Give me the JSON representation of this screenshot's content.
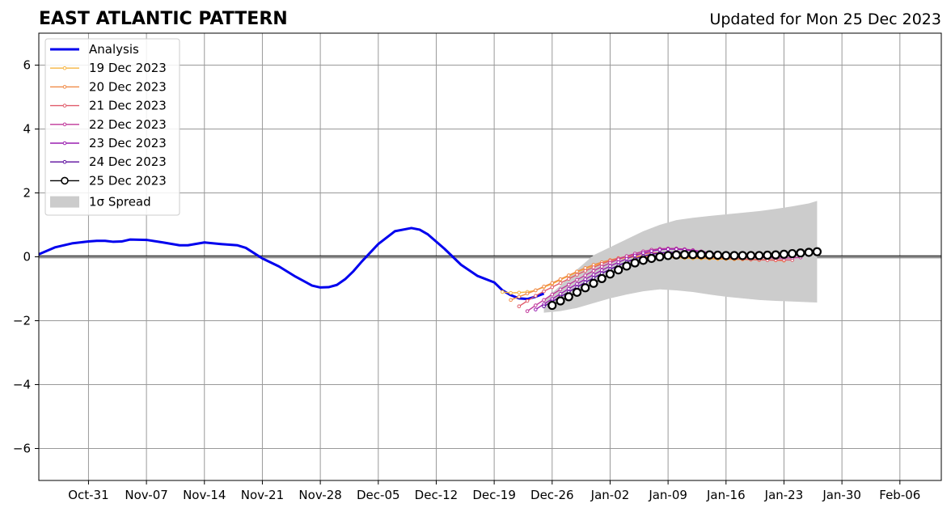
{
  "chart_data": {
    "type": "line",
    "title": "EAST ATLANTIC PATTERN",
    "subtitle": "Updated for Mon 25 Dec 2023",
    "xlabel": "",
    "ylabel": "",
    "xlim": [
      "2023-10-25",
      "2024-02-11"
    ],
    "ylim": [
      -7,
      7
    ],
    "yticks": [
      -6,
      -4,
      -2,
      0,
      2,
      4,
      6
    ],
    "ytick_labels": [
      "−6",
      "−4",
      "−2",
      "0",
      "2",
      "4",
      "6"
    ],
    "xticks": [
      "2023-10-31",
      "2023-11-07",
      "2023-11-14",
      "2023-11-21",
      "2023-11-28",
      "2023-12-05",
      "2023-12-12",
      "2023-12-19",
      "2023-12-26",
      "2024-01-02",
      "2024-01-09",
      "2024-01-16",
      "2024-01-23",
      "2024-01-30",
      "2024-02-06"
    ],
    "xtick_labels": [
      "Oct-31",
      "Nov-07",
      "Nov-14",
      "Nov-21",
      "Nov-28",
      "Dec-05",
      "Dec-12",
      "Dec-19",
      "Dec-26",
      "Jan-02",
      "Jan-09",
      "Jan-16",
      "Jan-23",
      "Jan-30",
      "Feb-06"
    ],
    "grid": true,
    "legend_position": "top-left",
    "spread": {
      "label": "1σ Spread",
      "color": "#cccccc",
      "x": [
        "2023-12-25",
        "2023-12-27",
        "2023-12-29",
        "2023-12-31",
        "2024-01-02",
        "2024-01-04",
        "2024-01-06",
        "2024-01-08",
        "2024-01-10",
        "2024-01-12",
        "2024-01-14",
        "2024-01-16",
        "2024-01-18",
        "2024-01-20",
        "2024-01-22",
        "2024-01-24",
        "2024-01-26",
        "2024-01-27"
      ],
      "upper": [
        -1.35,
        -0.9,
        -0.4,
        0.05,
        0.3,
        0.55,
        0.8,
        1.0,
        1.15,
        1.22,
        1.28,
        1.33,
        1.38,
        1.43,
        1.5,
        1.58,
        1.67,
        1.75
      ],
      "lower": [
        -1.75,
        -1.7,
        -1.6,
        -1.45,
        -1.3,
        -1.18,
        -1.08,
        -1.02,
        -1.05,
        -1.1,
        -1.18,
        -1.25,
        -1.3,
        -1.35,
        -1.38,
        -1.4,
        -1.42,
        -1.43
      ]
    },
    "series": [
      {
        "name": "Analysis",
        "color": "#0000ee",
        "marker": "none",
        "x": [
          "2023-10-25",
          "2023-10-27",
          "2023-10-29",
          "2023-10-31",
          "2023-11-01",
          "2023-11-02",
          "2023-11-03",
          "2023-11-04",
          "2023-11-05",
          "2023-11-07",
          "2023-11-09",
          "2023-11-11",
          "2023-11-12",
          "2023-11-14",
          "2023-11-16",
          "2023-11-18",
          "2023-11-19",
          "2023-11-21",
          "2023-11-23",
          "2023-11-25",
          "2023-11-27",
          "2023-11-28",
          "2023-11-29",
          "2023-11-30",
          "2023-12-01",
          "2023-12-02",
          "2023-12-03",
          "2023-12-05",
          "2023-12-07",
          "2023-12-09",
          "2023-12-10",
          "2023-12-11",
          "2023-12-13",
          "2023-12-15",
          "2023-12-17",
          "2023-12-19",
          "2023-12-20",
          "2023-12-21",
          "2023-12-22",
          "2023-12-23",
          "2023-12-24",
          "2023-12-25"
        ],
        "values": [
          0.08,
          0.3,
          0.42,
          0.48,
          0.5,
          0.5,
          0.47,
          0.48,
          0.54,
          0.53,
          0.45,
          0.36,
          0.36,
          0.45,
          0.4,
          0.36,
          0.28,
          -0.05,
          -0.3,
          -0.62,
          -0.9,
          -0.96,
          -0.95,
          -0.88,
          -0.7,
          -0.45,
          -0.15,
          0.4,
          0.8,
          0.9,
          0.85,
          0.7,
          0.25,
          -0.25,
          -0.6,
          -0.8,
          -1.05,
          -1.2,
          -1.3,
          -1.32,
          -1.25,
          -1.15
        ]
      },
      {
        "name": "19 Dec 2023",
        "color": "#f6b441",
        "marker": "small",
        "x": [
          "2023-12-20",
          "2023-12-21",
          "2023-12-22",
          "2023-12-23",
          "2023-12-24",
          "2023-12-25",
          "2023-12-26",
          "2023-12-27",
          "2023-12-28",
          "2023-12-29",
          "2023-12-30",
          "2023-12-31",
          "2024-01-01",
          "2024-01-02",
          "2024-01-03",
          "2024-01-04",
          "2024-01-05",
          "2024-01-06",
          "2024-01-07",
          "2024-01-08",
          "2024-01-09",
          "2024-01-10",
          "2024-01-11",
          "2024-01-12",
          "2024-01-13",
          "2024-01-14",
          "2024-01-15",
          "2024-01-16",
          "2024-01-17",
          "2024-01-18",
          "2024-01-19",
          "2024-01-20",
          "2024-01-21",
          "2024-01-22"
        ],
        "values": [
          -1.1,
          -1.13,
          -1.12,
          -1.1,
          -1.05,
          -0.95,
          -0.85,
          -0.72,
          -0.6,
          -0.48,
          -0.38,
          -0.28,
          -0.2,
          -0.13,
          -0.07,
          -0.03,
          -0.01,
          0.0,
          0.0,
          -0.01,
          -0.02,
          -0.03,
          -0.04,
          -0.05,
          -0.05,
          -0.06,
          -0.07,
          -0.07,
          -0.08,
          -0.08,
          -0.08,
          -0.09,
          -0.09,
          -0.1
        ]
      },
      {
        "name": "20 Dec 2023",
        "color": "#f08a47",
        "marker": "small",
        "x": [
          "2023-12-21",
          "2023-12-22",
          "2023-12-23",
          "2023-12-24",
          "2023-12-25",
          "2023-12-26",
          "2023-12-27",
          "2023-12-28",
          "2023-12-29",
          "2023-12-30",
          "2023-12-31",
          "2024-01-01",
          "2024-01-02",
          "2024-01-03",
          "2024-01-04",
          "2024-01-05",
          "2024-01-06",
          "2024-01-07",
          "2024-01-08",
          "2024-01-09",
          "2024-01-10",
          "2024-01-11",
          "2024-01-12",
          "2024-01-13",
          "2024-01-14",
          "2024-01-15",
          "2024-01-16",
          "2024-01-17",
          "2024-01-18",
          "2024-01-19",
          "2024-01-20",
          "2024-01-21",
          "2024-01-22",
          "2024-01-23"
        ],
        "values": [
          -1.35,
          -1.25,
          -1.15,
          -1.05,
          -0.93,
          -0.82,
          -0.7,
          -0.58,
          -0.46,
          -0.35,
          -0.25,
          -0.17,
          -0.1,
          -0.04,
          0.0,
          0.02,
          0.03,
          0.03,
          0.02,
          0.01,
          0.0,
          -0.01,
          -0.02,
          -0.03,
          -0.04,
          -0.05,
          -0.06,
          -0.07,
          -0.08,
          -0.09,
          -0.1,
          -0.1,
          -0.11,
          -0.12
        ]
      },
      {
        "name": "21 Dec 2023",
        "color": "#e05c6b",
        "marker": "small",
        "x": [
          "2023-12-22",
          "2023-12-23",
          "2023-12-24",
          "2023-12-25",
          "2023-12-26",
          "2023-12-27",
          "2023-12-28",
          "2023-12-29",
          "2023-12-30",
          "2023-12-31",
          "2024-01-01",
          "2024-01-02",
          "2024-01-03",
          "2024-01-04",
          "2024-01-05",
          "2024-01-06",
          "2024-01-07",
          "2024-01-08",
          "2024-01-09",
          "2024-01-10",
          "2024-01-11",
          "2024-01-12",
          "2024-01-13",
          "2024-01-14",
          "2024-01-15",
          "2024-01-16",
          "2024-01-17",
          "2024-01-18",
          "2024-01-19",
          "2024-01-20",
          "2024-01-21",
          "2024-01-22",
          "2024-01-23",
          "2024-01-24"
        ],
        "values": [
          -1.55,
          -1.38,
          -1.22,
          -1.08,
          -0.95,
          -0.82,
          -0.69,
          -0.56,
          -0.44,
          -0.33,
          -0.22,
          -0.13,
          -0.05,
          0.02,
          0.07,
          0.1,
          0.12,
          0.12,
          0.11,
          0.09,
          0.07,
          0.05,
          0.03,
          0.01,
          -0.01,
          -0.03,
          -0.05,
          -0.06,
          -0.08,
          -0.09,
          -0.1,
          -0.1,
          -0.1,
          -0.1
        ]
      },
      {
        "name": "22 Dec 2023",
        "color": "#c0379a",
        "marker": "small",
        "x": [
          "2023-12-23",
          "2023-12-24",
          "2023-12-25",
          "2023-12-26",
          "2023-12-27",
          "2023-12-28",
          "2023-12-29",
          "2023-12-30",
          "2023-12-31",
          "2024-01-01",
          "2024-01-02",
          "2024-01-03",
          "2024-01-04",
          "2024-01-05",
          "2024-01-06",
          "2024-01-07",
          "2024-01-08",
          "2024-01-09",
          "2024-01-10",
          "2024-01-11",
          "2024-01-12",
          "2024-01-13",
          "2024-01-14",
          "2024-01-15",
          "2024-01-16",
          "2024-01-17",
          "2024-01-18",
          "2024-01-19",
          "2024-01-20",
          "2024-01-21",
          "2024-01-22",
          "2024-01-23",
          "2024-01-24",
          "2024-01-25"
        ],
        "values": [
          -1.7,
          -1.52,
          -1.35,
          -1.18,
          -1.02,
          -0.87,
          -0.72,
          -0.58,
          -0.44,
          -0.31,
          -0.19,
          -0.08,
          0.02,
          0.1,
          0.17,
          0.22,
          0.25,
          0.26,
          0.26,
          0.24,
          0.21,
          0.17,
          0.13,
          0.1,
          0.07,
          0.04,
          0.02,
          0.0,
          -0.02,
          -0.03,
          -0.04,
          -0.04,
          -0.03,
          -0.02
        ]
      },
      {
        "name": "23 Dec 2023",
        "color": "#9a1fb0",
        "marker": "small",
        "x": [
          "2023-12-24",
          "2023-12-25",
          "2023-12-26",
          "2023-12-27",
          "2023-12-28",
          "2023-12-29",
          "2023-12-30",
          "2023-12-31",
          "2024-01-01",
          "2024-01-02",
          "2024-01-03",
          "2024-01-04",
          "2024-01-05",
          "2024-01-06",
          "2024-01-07",
          "2024-01-08",
          "2024-01-09",
          "2024-01-10",
          "2024-01-11",
          "2024-01-12",
          "2024-01-13",
          "2024-01-14",
          "2024-01-15",
          "2024-01-16",
          "2024-01-17",
          "2024-01-18",
          "2024-01-19",
          "2024-01-20",
          "2024-01-21",
          "2024-01-22",
          "2024-01-23",
          "2024-01-24",
          "2024-01-25",
          "2024-01-26"
        ],
        "values": [
          -1.65,
          -1.48,
          -1.32,
          -1.16,
          -1.0,
          -0.85,
          -0.7,
          -0.56,
          -0.42,
          -0.29,
          -0.17,
          -0.06,
          0.04,
          0.12,
          0.18,
          0.22,
          0.24,
          0.24,
          0.22,
          0.19,
          0.16,
          0.12,
          0.09,
          0.07,
          0.05,
          0.04,
          0.03,
          0.03,
          0.03,
          0.04,
          0.05,
          0.06,
          0.08,
          0.1
        ]
      },
      {
        "name": "24 Dec 2023",
        "color": "#5c0c9e",
        "marker": "small",
        "x": [
          "2023-12-25",
          "2023-12-26",
          "2023-12-27",
          "2023-12-28",
          "2023-12-29",
          "2023-12-30",
          "2023-12-31",
          "2024-01-01",
          "2024-01-02",
          "2024-01-03",
          "2024-01-04",
          "2024-01-05",
          "2024-01-06",
          "2024-01-07",
          "2024-01-08",
          "2024-01-09",
          "2024-01-10",
          "2024-01-11",
          "2024-01-12",
          "2024-01-13",
          "2024-01-14",
          "2024-01-15",
          "2024-01-16",
          "2024-01-17",
          "2024-01-18",
          "2024-01-19",
          "2024-01-20",
          "2024-01-21",
          "2024-01-22",
          "2024-01-23",
          "2024-01-24",
          "2024-01-25",
          "2024-01-26",
          "2024-01-27"
        ],
        "values": [
          -1.55,
          -1.4,
          -1.25,
          -1.1,
          -0.95,
          -0.8,
          -0.66,
          -0.52,
          -0.39,
          -0.27,
          -0.16,
          -0.06,
          0.02,
          0.08,
          0.12,
          0.14,
          0.14,
          0.13,
          0.11,
          0.09,
          0.08,
          0.06,
          0.05,
          0.05,
          0.04,
          0.04,
          0.05,
          0.06,
          0.07,
          0.09,
          0.11,
          0.13,
          0.15,
          0.17
        ]
      },
      {
        "name": "25 Dec 2023",
        "color": "#000000",
        "marker": "large",
        "x": [
          "2023-12-26",
          "2023-12-27",
          "2023-12-28",
          "2023-12-29",
          "2023-12-30",
          "2023-12-31",
          "2024-01-01",
          "2024-01-02",
          "2024-01-03",
          "2024-01-04",
          "2024-01-05",
          "2024-01-06",
          "2024-01-07",
          "2024-01-08",
          "2024-01-09",
          "2024-01-10",
          "2024-01-11",
          "2024-01-12",
          "2024-01-13",
          "2024-01-14",
          "2024-01-15",
          "2024-01-16",
          "2024-01-17",
          "2024-01-18",
          "2024-01-19",
          "2024-01-20",
          "2024-01-21",
          "2024-01-22",
          "2024-01-23",
          "2024-01-24",
          "2024-01-25",
          "2024-01-26",
          "2024-01-27"
        ],
        "values": [
          -1.52,
          -1.38,
          -1.25,
          -1.11,
          -0.97,
          -0.83,
          -0.68,
          -0.54,
          -0.41,
          -0.29,
          -0.19,
          -0.11,
          -0.05,
          0.0,
          0.04,
          0.06,
          0.07,
          0.07,
          0.07,
          0.06,
          0.05,
          0.04,
          0.04,
          0.04,
          0.04,
          0.04,
          0.05,
          0.06,
          0.08,
          0.1,
          0.12,
          0.14,
          0.16
        ]
      }
    ]
  }
}
